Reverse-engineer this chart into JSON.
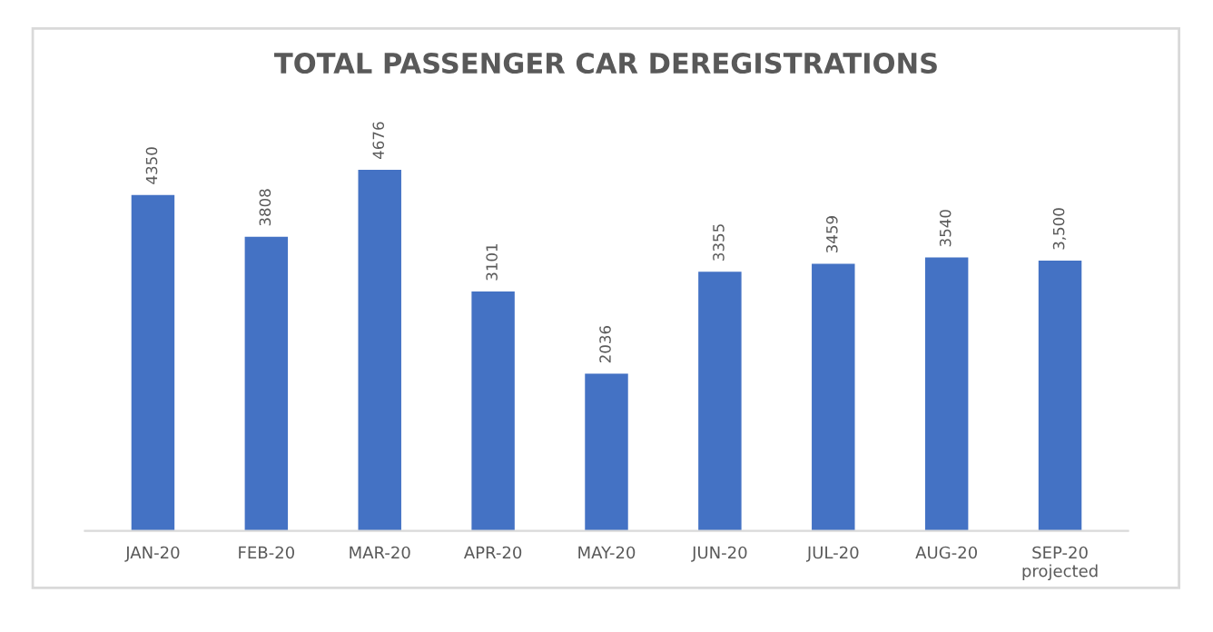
{
  "chart_data": {
    "type": "bar",
    "title": "TOTAL PASSENGER CAR DEREGISTRATIONS",
    "categories": [
      "JAN-20",
      "FEB-20",
      "MAR-20",
      "APR-20",
      "MAY-20",
      "JUN-20",
      "JUL-20",
      "AUG-20",
      "SEP-20\nprojected"
    ],
    "values": [
      4350,
      3808,
      4676,
      3101,
      2036,
      3355,
      3459,
      3540,
      3500
    ],
    "value_labels": [
      "4350",
      "3808",
      "4676",
      "3101",
      "2036",
      "3355",
      "3459",
      "3540",
      "3,500"
    ],
    "color": "#4472c4",
    "grid": false,
    "legend": false
  }
}
